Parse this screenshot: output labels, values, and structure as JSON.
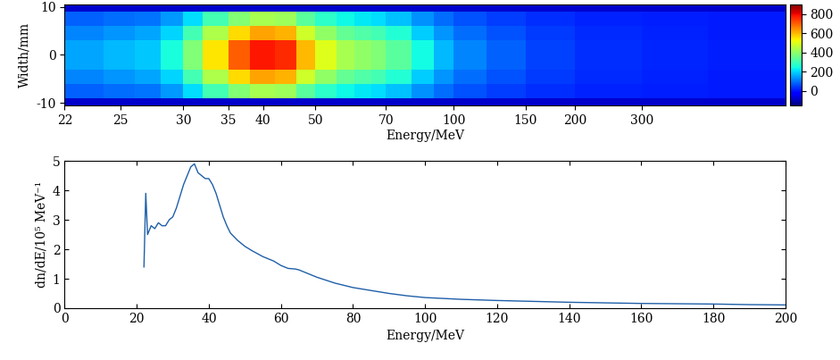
{
  "chart_data": [
    {
      "type": "heatmap",
      "xlabel": "Energy/MeV",
      "ylabel": "Width/mm",
      "x_edges": [
        22,
        24,
        26,
        28,
        30,
        32,
        35,
        38,
        42,
        46,
        50,
        55,
        60,
        65,
        70,
        80,
        90,
        100,
        120,
        150,
        200,
        300,
        450,
        730
      ],
      "y_edges": [
        -10.5,
        -9,
        -6,
        -3,
        3,
        6,
        9,
        10.5
      ],
      "cells": [
        [
          -80,
          -80,
          -80,
          -80,
          -80,
          -80,
          -80,
          -80,
          -80,
          -80,
          -80,
          -80,
          -80,
          -80,
          -80,
          -80,
          -80,
          -80,
          -80,
          -80,
          -80,
          -80,
          -80
        ],
        [
          82,
          94,
          104,
          138,
          209,
          302,
          385,
          429,
          418,
          330,
          275,
          236,
          220,
          209,
          182,
          132,
          94,
          66,
          44,
          28,
          16,
          11,
          6
        ],
        [
          120,
          136,
          152,
          200,
          304,
          440,
          560,
          624,
          608,
          480,
          400,
          344,
          320,
          304,
          264,
          192,
          136,
          96,
          64,
          40,
          24,
          16,
          8
        ],
        [
          150,
          170,
          190,
          250,
          380,
          550,
          700,
          780,
          760,
          600,
          500,
          430,
          400,
          380,
          330,
          240,
          170,
          120,
          80,
          50,
          30,
          20,
          10
        ],
        [
          120,
          136,
          152,
          200,
          304,
          440,
          560,
          624,
          608,
          480,
          400,
          344,
          320,
          304,
          264,
          192,
          136,
          96,
          64,
          40,
          24,
          16,
          8
        ],
        [
          82,
          94,
          104,
          138,
          209,
          302,
          385,
          429,
          418,
          330,
          275,
          236,
          220,
          209,
          182,
          132,
          94,
          66,
          44,
          28,
          16,
          11,
          6
        ],
        [
          -80,
          -80,
          -80,
          -80,
          -80,
          -80,
          -80,
          -80,
          -80,
          -80,
          -80,
          -80,
          -80,
          -80,
          -80,
          -80,
          -80,
          -80,
          -80,
          -80,
          -80,
          -80,
          -80
        ]
      ],
      "colorbar_range": [
        -150,
        900
      ],
      "colorbar_ticks": [
        0,
        200,
        400,
        600,
        800
      ],
      "xlim": [
        22,
        730
      ],
      "xticks": [
        22,
        25,
        30,
        35,
        40,
        50,
        70,
        100,
        150,
        200,
        300
      ],
      "ylim": [
        -10.5,
        10.5
      ],
      "yticks": [
        -10,
        0,
        10
      ]
    },
    {
      "type": "line",
      "xlabel": "Energy/MeV",
      "ylabel": "dn/dE/10⁵ MeV⁻¹",
      "color": "#1f5fa8",
      "x": [
        22,
        22.5,
        23,
        24,
        25,
        26,
        27,
        28,
        29,
        30,
        31,
        32,
        33,
        34,
        35,
        36,
        37,
        38,
        39,
        40,
        41,
        42,
        43,
        44,
        45,
        46,
        48,
        50,
        52,
        55,
        58,
        60,
        62,
        64,
        65,
        67,
        70,
        75,
        80,
        85,
        90,
        95,
        100,
        110,
        120,
        130,
        140,
        150,
        160,
        170,
        180,
        190,
        200
      ],
      "values": [
        1.4,
        3.9,
        2.5,
        2.8,
        2.7,
        2.9,
        2.8,
        2.8,
        3.0,
        3.1,
        3.4,
        3.8,
        4.2,
        4.5,
        4.8,
        4.9,
        4.6,
        4.5,
        4.4,
        4.4,
        4.2,
        3.9,
        3.5,
        3.1,
        2.8,
        2.55,
        2.3,
        2.1,
        1.95,
        1.75,
        1.6,
        1.45,
        1.35,
        1.33,
        1.3,
        1.2,
        1.05,
        0.85,
        0.7,
        0.6,
        0.5,
        0.42,
        0.36,
        0.3,
        0.26,
        0.23,
        0.2,
        0.18,
        0.16,
        0.15,
        0.14,
        0.12,
        0.11
      ],
      "xlim": [
        0,
        200
      ],
      "xticks": [
        0,
        20,
        40,
        60,
        80,
        100,
        120,
        140,
        160,
        180,
        200
      ],
      "ylim": [
        0,
        5
      ],
      "yticks": [
        0,
        1,
        2,
        3,
        4,
        5
      ]
    }
  ]
}
